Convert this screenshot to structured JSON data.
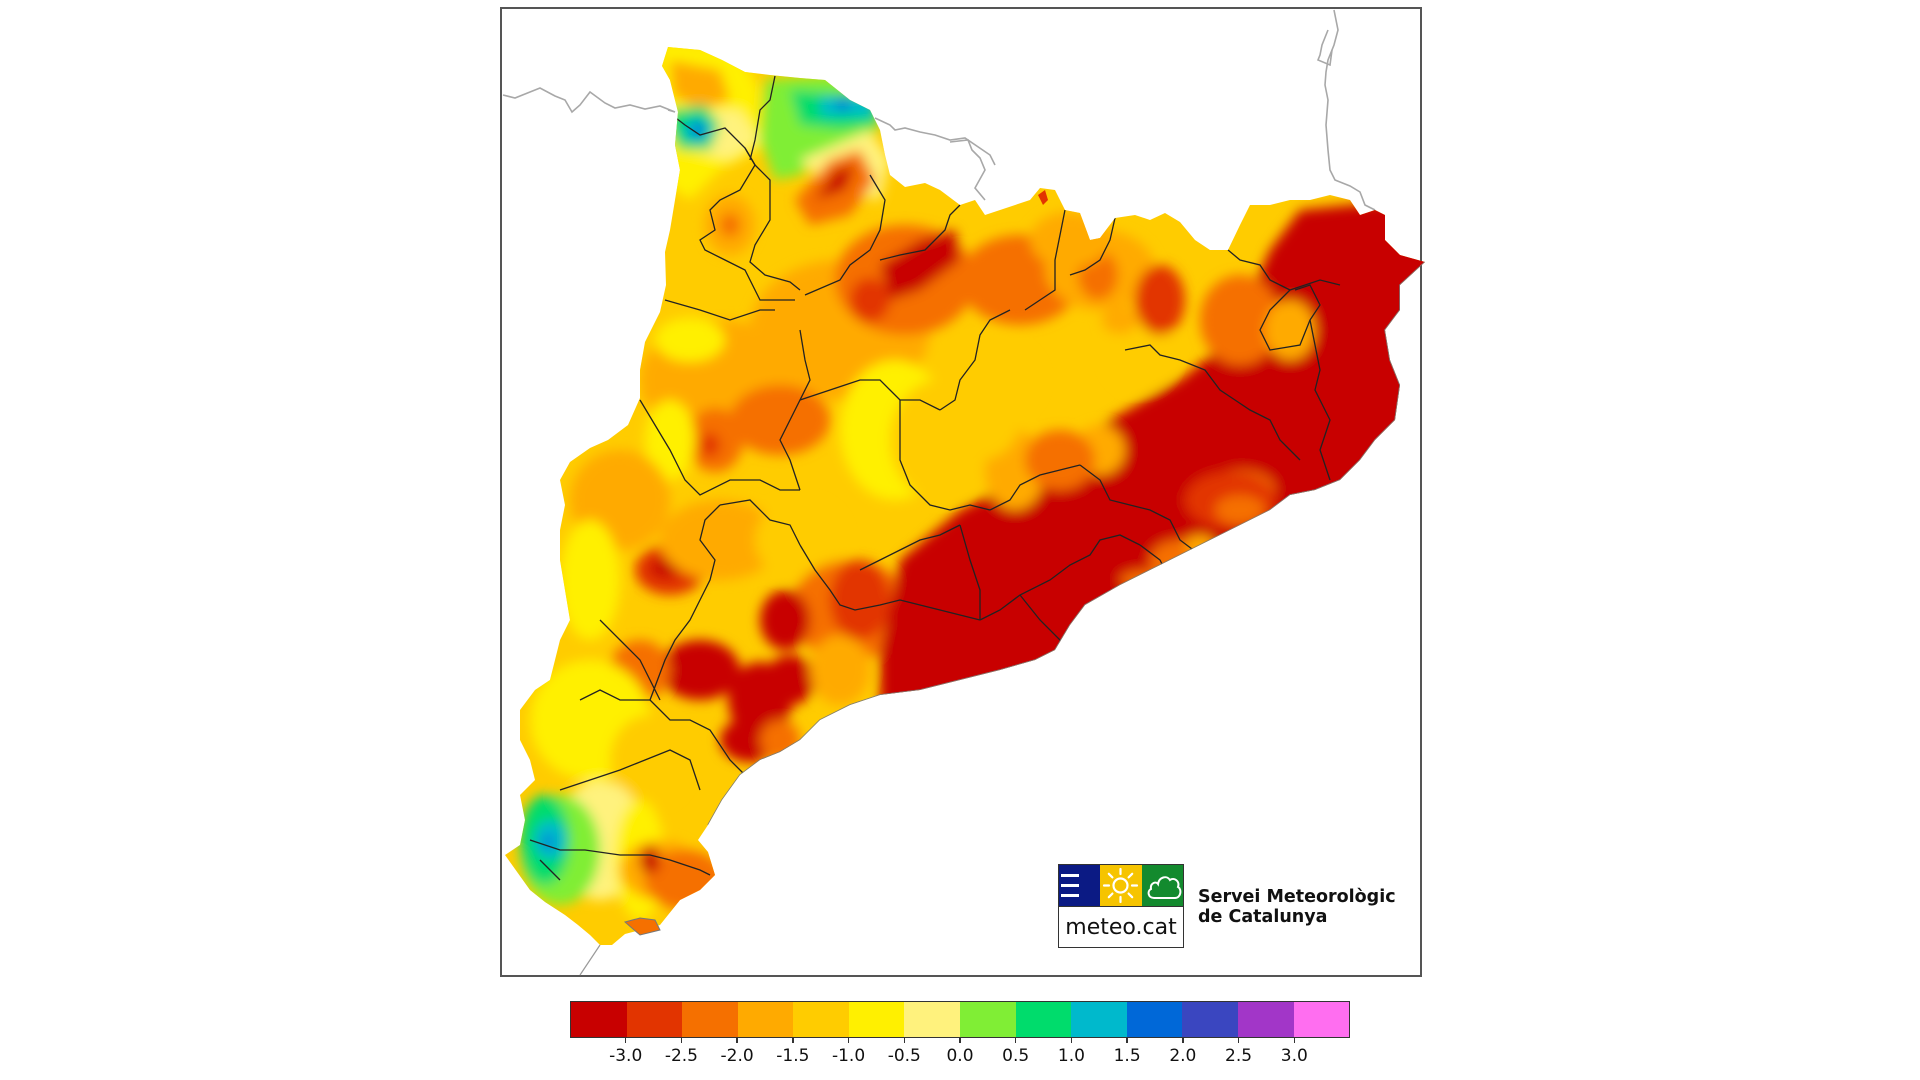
{
  "map": {
    "region": "Catalunya",
    "frame": {
      "border_color": "#555555"
    }
  },
  "logo": {
    "wordmark": "meteo.cat",
    "org_name_line1": "Servei Meteorològic",
    "org_name_line2": "de Catalunya",
    "tiles": [
      {
        "icon": "waves-icon",
        "color": "#0b1a84"
      },
      {
        "icon": "sun-icon",
        "color": "#f6c400"
      },
      {
        "icon": "cloud-icon",
        "color": "#138a2e"
      }
    ]
  },
  "legend": {
    "colors": [
      "#c80000",
      "#e23400",
      "#f57000",
      "#ffaa00",
      "#ffcc00",
      "#fff000",
      "#fff27d",
      "#80ee35",
      "#00dc6c",
      "#00b9cc",
      "#0068d8",
      "#3a46c0",
      "#a236c8",
      "#ff6ef0"
    ],
    "ticks": [
      "-3.0",
      "-2.5",
      "-2.0",
      "-1.5",
      "-1.0",
      "-0.5",
      "0.0",
      "0.5",
      "1.0",
      "1.5",
      "2.0",
      "2.5",
      "3.0"
    ]
  },
  "chart_data": {
    "type": "heatmap",
    "title": "",
    "region": "Catalunya",
    "colorbar": {
      "boundaries": [
        -3.5,
        -3.0,
        -2.5,
        -2.0,
        -1.5,
        -1.0,
        -0.5,
        0.0,
        0.5,
        1.0,
        1.5,
        2.0,
        2.5,
        3.0,
        3.5
      ],
      "tick_labels": [
        "-3.0",
        "-2.5",
        "-2.0",
        "-1.5",
        "-1.0",
        "-0.5",
        "0.0",
        "0.5",
        "1.0",
        "1.5",
        "2.0",
        "2.5",
        "3.0"
      ],
      "colors": [
        "#c80000",
        "#e23400",
        "#f57000",
        "#ffaa00",
        "#ffcc00",
        "#fff000",
        "#fff27d",
        "#80ee35",
        "#00dc6c",
        "#00b9cc",
        "#0068d8",
        "#3a46c0",
        "#a236c8",
        "#ff6ef0"
      ],
      "position": "bottom"
    },
    "observations": {
      "dominant_range": "-3.0 to -0.5",
      "lowest_areas": "Eastern/north-eastern and coastal central region below -3.0",
      "highest_areas": "Northern Pyrenees and south-western Ebro area reaching 1.0 to 2.0"
    }
  }
}
